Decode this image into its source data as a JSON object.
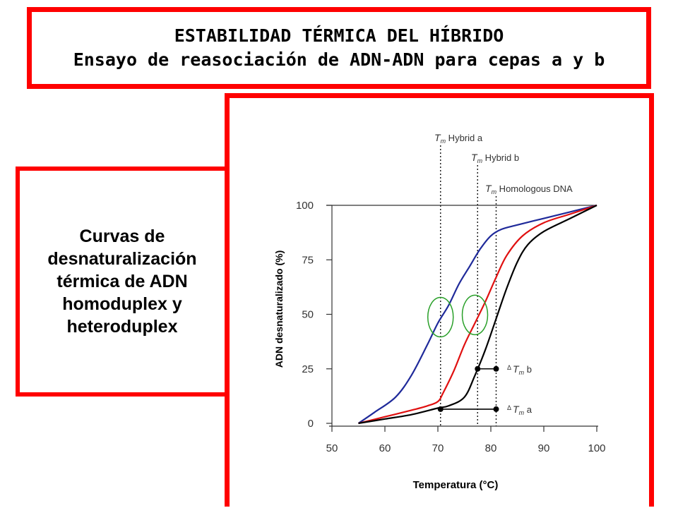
{
  "header": {
    "line1": "ESTABILIDAD TÉRMICA DEL HÍBRIDO",
    "line2": "Ensayo de reasociación de ADN-ADN para cepas a y b"
  },
  "side_panel": {
    "lines": [
      "Curvas de",
      "desnaturalización",
      "térmica de ADN",
      "homoduplex y",
      "heteroduplex"
    ]
  },
  "colors": {
    "frame": "#ff0000",
    "hybrid_a": "#1f2a9a",
    "hybrid_b": "#e01010",
    "homologous": "#000000",
    "highlight": "#2aa02a"
  },
  "chart_data": {
    "type": "line",
    "xlabel": "Temperatura (°C)",
    "ylabel": "ADN desnaturalizado (%)",
    "xlim": [
      50,
      100
    ],
    "ylim": [
      0,
      100
    ],
    "xticks": [
      "50",
      "60",
      "70",
      "80",
      "90",
      "100"
    ],
    "yticks": [
      "0",
      "25",
      "50",
      "75",
      "100"
    ],
    "series": [
      {
        "key": "hybrid_a",
        "x": [
          55,
          58,
          62,
          65,
          68,
          70,
          72,
          74,
          76,
          78,
          80,
          82,
          85,
          90,
          95,
          100
        ],
        "y": [
          0,
          5,
          12,
          22,
          36,
          46,
          54,
          64,
          72,
          80,
          86,
          89,
          91,
          94,
          97,
          100
        ]
      },
      {
        "key": "hybrid_b",
        "x": [
          55,
          60,
          65,
          68,
          70,
          71,
          73,
          75,
          77,
          79,
          81,
          83,
          86,
          90,
          95,
          100
        ],
        "y": [
          0,
          3,
          6,
          8,
          10,
          14,
          24,
          36,
          46,
          56,
          67,
          77,
          86,
          92,
          96,
          100
        ]
      },
      {
        "key": "homologous",
        "x": [
          55,
          60,
          65,
          70,
          72,
          75,
          77,
          79,
          81,
          83,
          85,
          87,
          90,
          95,
          100
        ],
        "y": [
          0,
          2,
          4,
          7,
          8,
          12,
          22,
          34,
          48,
          62,
          74,
          82,
          88,
          94,
          100
        ]
      }
    ],
    "tm_lines": [
      {
        "x": 70.5,
        "label_sub": "m",
        "label_rest": "Hybrid  a"
      },
      {
        "x": 77.5,
        "label_sub": "m",
        "label_rest": "Hybrid  b"
      },
      {
        "x": 81,
        "label_sub": "m",
        "label_rest": "Homologous DNA"
      }
    ],
    "delta_bars": [
      {
        "x1": 77.5,
        "x2": 81,
        "y": 25,
        "label_sub": "m",
        "label_rest": "b"
      },
      {
        "x1": 70.5,
        "x2": 81,
        "y": 6.5,
        "label_sub": "m",
        "label_rest": "a"
      }
    ],
    "highlights": [
      {
        "x": 70.5,
        "y": 50
      },
      {
        "x": 77,
        "y": 51
      }
    ],
    "tm_symbol": "T",
    "delta_symbol": "Δ"
  }
}
